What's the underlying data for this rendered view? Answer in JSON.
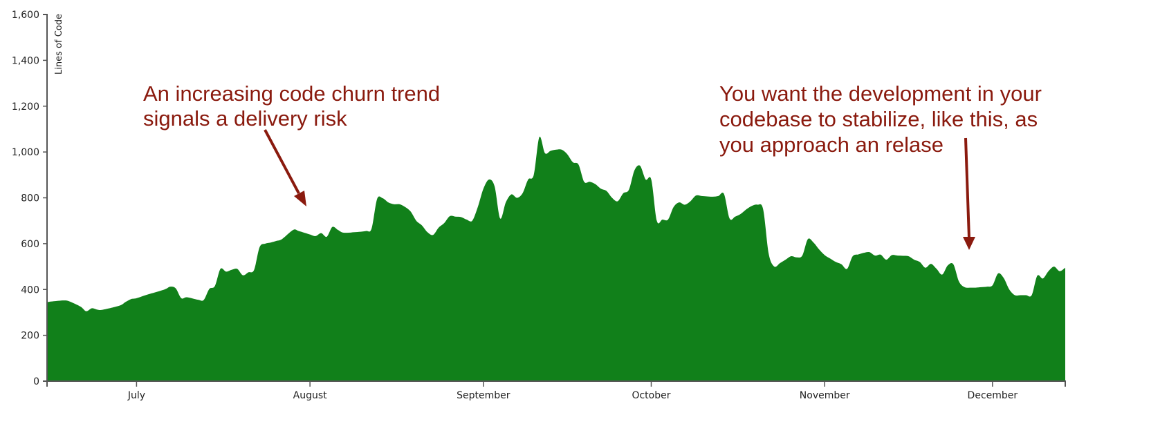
{
  "chart_data": {
    "type": "area",
    "title": "",
    "xlabel": "",
    "ylabel": "Lines of Code",
    "ylim": [
      0,
      1600
    ],
    "yticks": [
      0,
      200,
      400,
      600,
      800,
      1000,
      1200,
      1400,
      1600
    ],
    "ytick_labels": [
      "0",
      "200",
      "400",
      "600",
      "800",
      "1,000",
      "1,200",
      "1,400",
      "1,600"
    ],
    "xlim": [
      "06-15",
      "12-14"
    ],
    "xticks": [
      "07-01",
      "08-01",
      "09-01",
      "10-01",
      "11-01",
      "12-01"
    ],
    "xtick_labels": [
      "July",
      "August",
      "September",
      "October",
      "November",
      "December"
    ],
    "grid": false,
    "fill_color": "#11801a",
    "annotation_color": "#8a1a0e",
    "annotations": [
      {
        "lines": [
          "An increasing code churn trend",
          "signals a delivery risk"
        ]
      },
      {
        "lines": [
          "You want the development in your",
          "codebase to stabilize, like this, as",
          "you approach an relase"
        ]
      }
    ],
    "points": [
      [
        "06-15",
        345
      ],
      [
        "06-16",
        348
      ],
      [
        "06-18",
        352
      ],
      [
        "06-19",
        348
      ],
      [
        "06-21",
        325
      ],
      [
        "06-22",
        305
      ],
      [
        "06-23",
        318
      ],
      [
        "06-24",
        312
      ],
      [
        "06-25",
        312
      ],
      [
        "06-28",
        330
      ],
      [
        "06-29",
        345
      ],
      [
        "06-30",
        358
      ],
      [
        "07-01",
        362
      ],
      [
        "07-03",
        378
      ],
      [
        "07-06",
        400
      ],
      [
        "07-07",
        412
      ],
      [
        "07-08",
        405
      ],
      [
        "07-09",
        362
      ],
      [
        "07-10",
        366
      ],
      [
        "07-12",
        355
      ],
      [
        "07-13",
        354
      ],
      [
        "07-14",
        402
      ],
      [
        "07-15",
        415
      ],
      [
        "07-16",
        490
      ],
      [
        "07-17",
        478
      ],
      [
        "07-18",
        486
      ],
      [
        "07-19",
        490
      ],
      [
        "07-20",
        462
      ],
      [
        "07-21",
        475
      ],
      [
        "07-22",
        485
      ],
      [
        "07-23",
        585
      ],
      [
        "07-24",
        600
      ],
      [
        "07-25",
        605
      ],
      [
        "07-26",
        612
      ],
      [
        "07-27",
        620
      ],
      [
        "07-29",
        660
      ],
      [
        "07-30",
        655
      ],
      [
        "08-01",
        640
      ],
      [
        "08-02",
        633
      ],
      [
        "08-03",
        646
      ],
      [
        "08-04",
        630
      ],
      [
        "08-05",
        673
      ],
      [
        "08-06",
        660
      ],
      [
        "08-07",
        648
      ],
      [
        "08-09",
        650
      ],
      [
        "08-11",
        655
      ],
      [
        "08-12",
        665
      ],
      [
        "08-13",
        795
      ],
      [
        "08-14",
        798
      ],
      [
        "08-15",
        780
      ],
      [
        "08-16",
        772
      ],
      [
        "08-17",
        772
      ],
      [
        "08-18",
        760
      ],
      [
        "08-19",
        740
      ],
      [
        "08-20",
        700
      ],
      [
        "08-21",
        680
      ],
      [
        "08-22",
        650
      ],
      [
        "08-23",
        638
      ],
      [
        "08-24",
        670
      ],
      [
        "08-25",
        690
      ],
      [
        "08-26",
        720
      ],
      [
        "08-27",
        718
      ],
      [
        "08-28",
        716
      ],
      [
        "08-29",
        705
      ],
      [
        "08-30",
        700
      ],
      [
        "08-31",
        760
      ],
      [
        "09-01",
        840
      ],
      [
        "09-02",
        880
      ],
      [
        "09-03",
        850
      ],
      [
        "09-04",
        710
      ],
      [
        "09-05",
        780
      ],
      [
        "09-06",
        815
      ],
      [
        "09-07",
        800
      ],
      [
        "09-08",
        820
      ],
      [
        "09-09",
        880
      ],
      [
        "09-10",
        900
      ],
      [
        "09-11",
        1065
      ],
      [
        "09-12",
        995
      ],
      [
        "09-13",
        1005
      ],
      [
        "09-14",
        1010
      ],
      [
        "09-15",
        1010
      ],
      [
        "09-16",
        990
      ],
      [
        "09-17",
        955
      ],
      [
        "09-18",
        945
      ],
      [
        "09-19",
        870
      ],
      [
        "09-20",
        870
      ],
      [
        "09-21",
        860
      ],
      [
        "09-22",
        840
      ],
      [
        "09-23",
        830
      ],
      [
        "09-24",
        800
      ],
      [
        "09-25",
        785
      ],
      [
        "09-26",
        820
      ],
      [
        "09-27",
        835
      ],
      [
        "09-28",
        920
      ],
      [
        "09-29",
        940
      ],
      [
        "09-30",
        880
      ],
      [
        "10-01",
        880
      ],
      [
        "10-02",
        700
      ],
      [
        "10-03",
        705
      ],
      [
        "10-04",
        705
      ],
      [
        "10-05",
        760
      ],
      [
        "10-06",
        780
      ],
      [
        "10-07",
        770
      ],
      [
        "10-08",
        785
      ],
      [
        "10-09",
        810
      ],
      [
        "10-10",
        808
      ],
      [
        "10-11",
        806
      ],
      [
        "10-12",
        805
      ],
      [
        "10-13",
        808
      ],
      [
        "10-14",
        817
      ],
      [
        "10-15",
        710
      ],
      [
        "10-16",
        718
      ],
      [
        "10-17",
        730
      ],
      [
        "10-18",
        750
      ],
      [
        "10-19",
        765
      ],
      [
        "10-20",
        770
      ],
      [
        "10-21",
        750
      ],
      [
        "10-22",
        555
      ],
      [
        "10-23",
        500
      ],
      [
        "10-24",
        515
      ],
      [
        "10-25",
        530
      ],
      [
        "10-26",
        545
      ],
      [
        "10-27",
        540
      ],
      [
        "10-28",
        548
      ],
      [
        "10-29",
        620
      ],
      [
        "10-30",
        605
      ],
      [
        "10-31",
        575
      ],
      [
        "11-01",
        550
      ],
      [
        "11-02",
        535
      ],
      [
        "11-03",
        520
      ],
      [
        "11-04",
        510
      ],
      [
        "11-05",
        490
      ],
      [
        "11-06",
        545
      ],
      [
        "11-07",
        553
      ],
      [
        "11-08",
        560
      ],
      [
        "11-09",
        563
      ],
      [
        "11-10",
        548
      ],
      [
        "11-11",
        552
      ],
      [
        "11-12",
        530
      ],
      [
        "11-13",
        550
      ],
      [
        "11-14",
        548
      ],
      [
        "11-15",
        547
      ],
      [
        "11-16",
        545
      ],
      [
        "11-17",
        530
      ],
      [
        "11-18",
        520
      ],
      [
        "11-19",
        495
      ],
      [
        "11-20",
        512
      ],
      [
        "11-21",
        490
      ],
      [
        "11-22",
        465
      ],
      [
        "11-23",
        505
      ],
      [
        "11-24",
        510
      ],
      [
        "11-25",
        435
      ],
      [
        "11-26",
        410
      ],
      [
        "11-27",
        408
      ],
      [
        "11-28",
        408
      ],
      [
        "11-29",
        410
      ],
      [
        "11-30",
        412
      ],
      [
        "12-01",
        418
      ],
      [
        "12-02",
        470
      ],
      [
        "12-03",
        450
      ],
      [
        "12-04",
        400
      ],
      [
        "12-05",
        375
      ],
      [
        "12-06",
        375
      ],
      [
        "12-07",
        375
      ],
      [
        "12-08",
        375
      ],
      [
        "12-09",
        460
      ],
      [
        "12-10",
        448
      ],
      [
        "12-11",
        480
      ],
      [
        "12-12",
        500
      ],
      [
        "12-13",
        480
      ],
      [
        "12-14",
        495
      ]
    ]
  }
}
